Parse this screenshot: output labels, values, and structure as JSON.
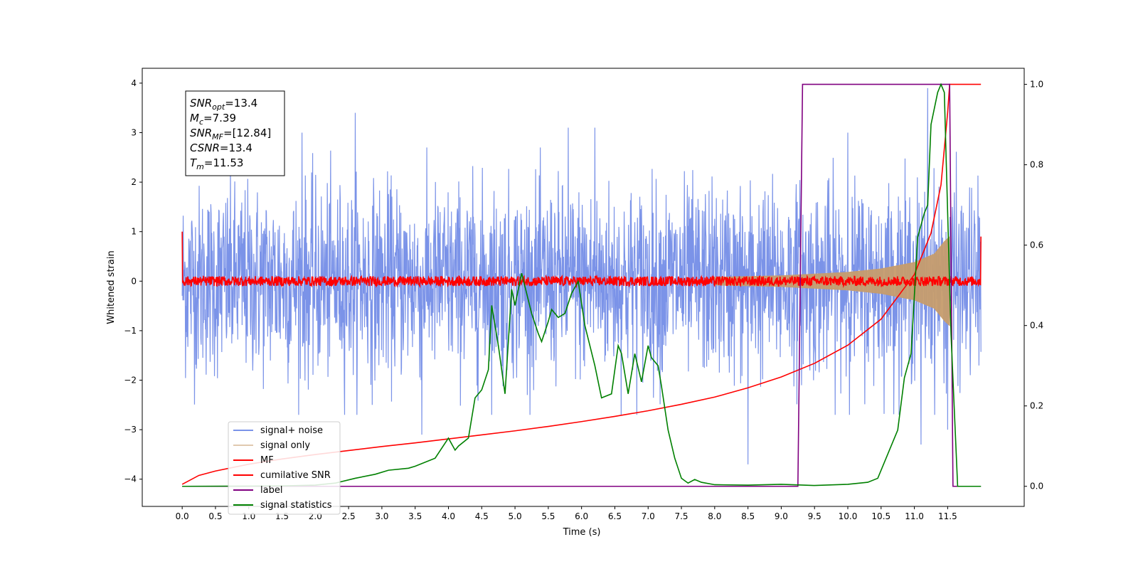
{
  "chart_data": {
    "type": "line",
    "xlabel": "Time (s)",
    "ylabel": "Whitened strain",
    "xlim": [
      -0.6,
      12.65
    ],
    "ylim": [
      -4.55,
      4.3
    ],
    "y2lim": [
      -0.05,
      1.04
    ],
    "xticks": [
      0.0,
      0.5,
      1.0,
      1.5,
      2.0,
      2.5,
      3.0,
      3.5,
      4.0,
      4.5,
      5.0,
      5.5,
      6.0,
      6.5,
      7.0,
      7.5,
      8.0,
      8.5,
      9.0,
      9.5,
      10.0,
      10.5,
      11.0,
      11.5
    ],
    "xtick_labels": [
      "0.0",
      "0.5",
      "1.0",
      "1.5",
      "2.0",
      "2.5",
      "3.0",
      "3.5",
      "4.0",
      "4.5",
      "5.0",
      "5.5",
      "6.0",
      "6.5",
      "7.0",
      "7.5",
      "8.0",
      "8.5",
      "9.0",
      "9.5",
      "10.0",
      "10.5",
      "11.0",
      "11.5"
    ],
    "yticks": [
      -4,
      -3,
      -2,
      -1,
      0,
      1,
      2,
      3,
      4
    ],
    "ytick_labels": [
      "−4",
      "−3",
      "−2",
      "−1",
      "0",
      "1",
      "2",
      "3",
      "4"
    ],
    "y2ticks": [
      0.0,
      0.2,
      0.4,
      0.6,
      0.8,
      1.0
    ],
    "y2tick_labels": [
      "0.0",
      "0.2",
      "0.4",
      "0.6",
      "0.8",
      "1.0"
    ],
    "grid": false,
    "legend_position": "bottom-left",
    "annotation": [
      {
        "sym": "SNR",
        "sub": "opt",
        "val": "=13.4"
      },
      {
        "sym": "M",
        "sub": "c",
        "val": "=7.39"
      },
      {
        "sym": "SNR",
        "sub": "MF",
        "val": "=[12.84]"
      },
      {
        "sym": "CSNR",
        "sub": "",
        "val": "=13.4"
      },
      {
        "sym": "T",
        "sub": "m",
        "val": "=11.53"
      }
    ],
    "series": [
      {
        "name": "signal+ noise",
        "color": "#7b93e8",
        "axis": "left",
        "t_range": [
          0.0,
          12.0
        ],
        "std": 0.95,
        "peak_spikes": [
          [
            1.8,
            3.0
          ],
          [
            2.6,
            3.4
          ],
          [
            3.6,
            -3.1
          ],
          [
            5.8,
            3.1
          ],
          [
            6.2,
            3.1
          ],
          [
            8.5,
            -3.7
          ],
          [
            10.0,
            3.0
          ],
          [
            11.1,
            -3.3
          ],
          [
            11.2,
            3.9
          ],
          [
            11.5,
            -3.0
          ]
        ]
      },
      {
        "name": "signal only",
        "color": "#c69c6d",
        "axis": "left",
        "chirp_peak_time": 11.53,
        "envelope": [
          [
            8.0,
            0.08
          ],
          [
            9.0,
            0.11
          ],
          [
            10.0,
            0.18
          ],
          [
            10.5,
            0.25
          ],
          [
            11.0,
            0.38
          ],
          [
            11.3,
            0.55
          ],
          [
            11.45,
            0.8
          ],
          [
            11.53,
            0.9
          ]
        ]
      },
      {
        "name": "MF",
        "color": "#ff0000",
        "axis": "left",
        "t_range": [
          0.0,
          12.0
        ],
        "start_value": 1.0,
        "end_value": 0.9,
        "noise_amplitude": 0.1
      },
      {
        "name": "cumilative SNR",
        "color": "#ff0000",
        "axis": "right",
        "points": [
          [
            0.0,
            0.005
          ],
          [
            0.25,
            0.027
          ],
          [
            0.5,
            0.038
          ],
          [
            1.0,
            0.055
          ],
          [
            1.5,
            0.068
          ],
          [
            2.0,
            0.079
          ],
          [
            2.5,
            0.089
          ],
          [
            3.0,
            0.099
          ],
          [
            3.5,
            0.108
          ],
          [
            4.0,
            0.118
          ],
          [
            4.5,
            0.128
          ],
          [
            5.0,
            0.138
          ],
          [
            5.5,
            0.149
          ],
          [
            6.0,
            0.161
          ],
          [
            6.5,
            0.174
          ],
          [
            7.0,
            0.188
          ],
          [
            7.5,
            0.204
          ],
          [
            8.0,
            0.222
          ],
          [
            8.5,
            0.245
          ],
          [
            9.0,
            0.272
          ],
          [
            9.5,
            0.306
          ],
          [
            10.0,
            0.351
          ],
          [
            10.5,
            0.416
          ],
          [
            11.0,
            0.527
          ],
          [
            11.25,
            0.63
          ],
          [
            11.4,
            0.75
          ],
          [
            11.5,
            0.93
          ],
          [
            11.53,
            1.0
          ],
          [
            12.0,
            1.0
          ]
        ]
      },
      {
        "name": "label",
        "color": "#800080",
        "axis": "right",
        "points": [
          [
            0.0,
            0.0
          ],
          [
            9.25,
            0.0
          ],
          [
            9.32,
            1.0
          ],
          [
            11.53,
            1.0
          ],
          [
            11.58,
            0.0
          ],
          [
            12.0,
            0.0
          ]
        ]
      },
      {
        "name": "signal statistics",
        "color": "#008000",
        "axis": "right",
        "points": [
          [
            0.0,
            0.0
          ],
          [
            1.5,
            0.001
          ],
          [
            2.0,
            0.003
          ],
          [
            2.3,
            0.008
          ],
          [
            2.6,
            0.02
          ],
          [
            2.9,
            0.03
          ],
          [
            3.1,
            0.04
          ],
          [
            3.4,
            0.045
          ],
          [
            3.5,
            0.05
          ],
          [
            3.8,
            0.07
          ],
          [
            4.0,
            0.12
          ],
          [
            4.1,
            0.09
          ],
          [
            4.15,
            0.1
          ],
          [
            4.3,
            0.12
          ],
          [
            4.4,
            0.22
          ],
          [
            4.5,
            0.24
          ],
          [
            4.6,
            0.29
          ],
          [
            4.65,
            0.45
          ],
          [
            4.75,
            0.35
          ],
          [
            4.85,
            0.23
          ],
          [
            4.95,
            0.49
          ],
          [
            5.0,
            0.45
          ],
          [
            5.1,
            0.53
          ],
          [
            5.25,
            0.43
          ],
          [
            5.35,
            0.38
          ],
          [
            5.4,
            0.36
          ],
          [
            5.5,
            0.41
          ],
          [
            5.55,
            0.44
          ],
          [
            5.65,
            0.42
          ],
          [
            5.75,
            0.43
          ],
          [
            5.85,
            0.48
          ],
          [
            5.95,
            0.51
          ],
          [
            6.05,
            0.4
          ],
          [
            6.2,
            0.3
          ],
          [
            6.3,
            0.22
          ],
          [
            6.45,
            0.23
          ],
          [
            6.55,
            0.35
          ],
          [
            6.6,
            0.33
          ],
          [
            6.7,
            0.23
          ],
          [
            6.8,
            0.33
          ],
          [
            6.9,
            0.26
          ],
          [
            7.0,
            0.35
          ],
          [
            7.05,
            0.32
          ],
          [
            7.15,
            0.3
          ],
          [
            7.2,
            0.25
          ],
          [
            7.3,
            0.14
          ],
          [
            7.4,
            0.07
          ],
          [
            7.5,
            0.02
          ],
          [
            7.6,
            0.008
          ],
          [
            7.7,
            0.017
          ],
          [
            7.8,
            0.01
          ],
          [
            8.0,
            0.004
          ],
          [
            8.5,
            0.003
          ],
          [
            9.0,
            0.005
          ],
          [
            9.5,
            0.002
          ],
          [
            10.0,
            0.005
          ],
          [
            10.3,
            0.01
          ],
          [
            10.45,
            0.02
          ],
          [
            10.6,
            0.08
          ],
          [
            10.75,
            0.14
          ],
          [
            10.85,
            0.27
          ],
          [
            10.95,
            0.33
          ],
          [
            11.05,
            0.62
          ],
          [
            11.15,
            0.68
          ],
          [
            11.2,
            0.7
          ],
          [
            11.25,
            0.9
          ],
          [
            11.35,
            0.98
          ],
          [
            11.4,
            1.0
          ],
          [
            11.45,
            0.98
          ],
          [
            11.55,
            0.38
          ],
          [
            11.65,
            0.0
          ],
          [
            12.0,
            0.0
          ]
        ]
      }
    ]
  }
}
